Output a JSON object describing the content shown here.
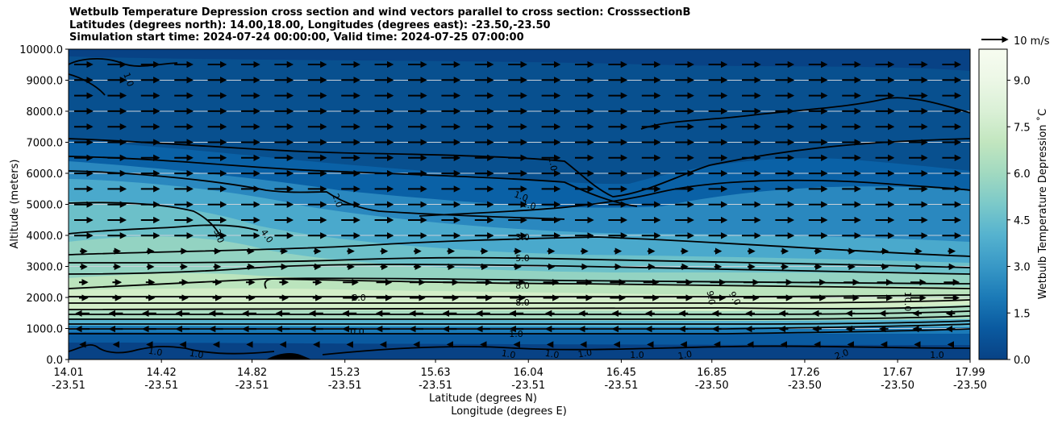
{
  "chart_data": {
    "type": "heatmap",
    "title_lines": [
      "Wetbulb Temperature Depression cross section and wind vectors parallel to cross section: CrosssectionB",
      "Latitudes (degrees north): 14.00,18.00, Longitudes (degrees east): -23.50,-23.50",
      "Simulation start time: 2024-07-24 00:00:00, Valid time: 2024-07-25 07:00:00"
    ],
    "xlabel_lat": "Latitude (degrees N)",
    "xlabel_lon": "Longitude (degrees E)",
    "ylabel": "Altitude (meters)",
    "colorbar_label": "Wetbulb Temperature Depression ˚C",
    "x_ticks": [
      {
        "lat": "14.01",
        "lon": "-23.51"
      },
      {
        "lat": "14.42",
        "lon": "-23.51"
      },
      {
        "lat": "14.82",
        "lon": "-23.51"
      },
      {
        "lat": "15.23",
        "lon": "-23.51"
      },
      {
        "lat": "15.63",
        "lon": "-23.51"
      },
      {
        "lat": "16.04",
        "lon": "-23.51"
      },
      {
        "lat": "16.45",
        "lon": "-23.51"
      },
      {
        "lat": "16.85",
        "lon": "-23.50"
      },
      {
        "lat": "17.26",
        "lon": "-23.50"
      },
      {
        "lat": "17.67",
        "lon": "-23.50"
      },
      {
        "lat": "17.99",
        "lon": "-23.50"
      }
    ],
    "y_ticks": [
      "0.0",
      "1000.0",
      "2000.0",
      "3000.0",
      "4000.0",
      "5000.0",
      "6000.0",
      "7000.0",
      "8000.0",
      "9000.0",
      "10000.0"
    ],
    "ylim": [
      0,
      10000
    ],
    "xlim": [
      14.01,
      17.99
    ],
    "colorbar_ticks": [
      "0.0",
      "1.5",
      "3.0",
      "4.5",
      "6.0",
      "7.5",
      "9.0"
    ],
    "colorbar_range": [
      0,
      10
    ],
    "quiver_key": "10 m/s",
    "contour_labels": [
      "1.0",
      "2.0",
      "3.0",
      "4.0",
      "5.0",
      "8.0",
      "9.0",
      "0.0",
      "10.0",
      "6.0",
      "7.0"
    ],
    "grid": "horizontal"
  }
}
